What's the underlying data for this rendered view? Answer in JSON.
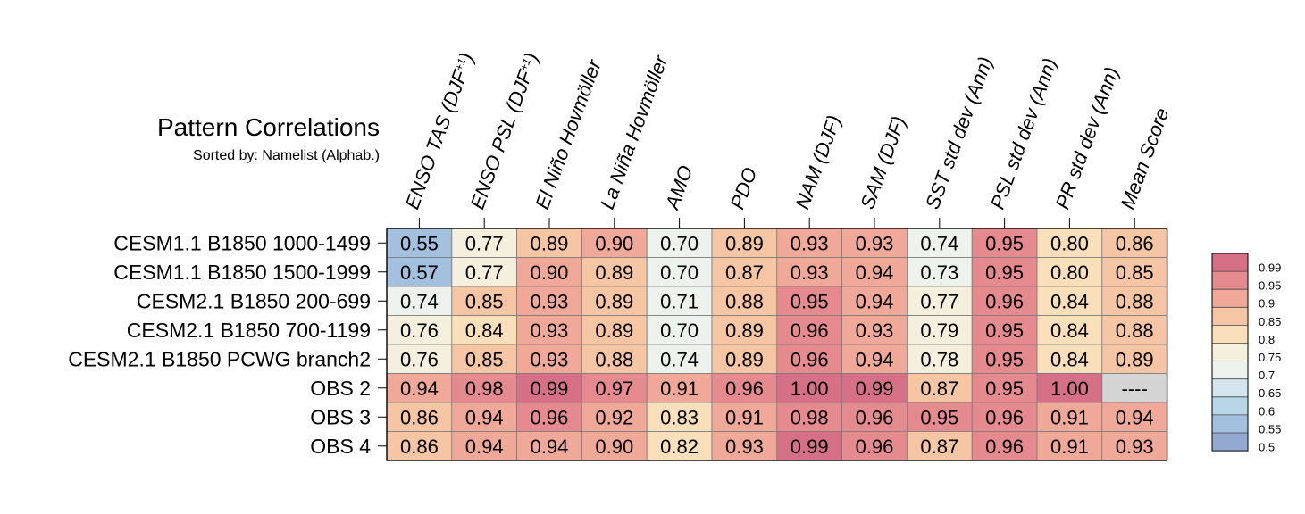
{
  "chart_data": {
    "type": "heatmap",
    "title": "Pattern Correlations",
    "subtitle": "Sorted by: Namelist (Alphab.)",
    "columns": [
      {
        "name": "ENSO TAS (DJF",
        "sup": "+1",
        "tail": ")"
      },
      {
        "name": "ENSO PSL (DJF",
        "sup": "+1",
        "tail": ")"
      },
      {
        "name": "El Niño Hovmöller",
        "sup": "",
        "tail": ""
      },
      {
        "name": "La Niña Hovmöller",
        "sup": "",
        "tail": ""
      },
      {
        "name": "AMO",
        "sup": "",
        "tail": ""
      },
      {
        "name": "PDO",
        "sup": "",
        "tail": ""
      },
      {
        "name": "NAM (DJF)",
        "sup": "",
        "tail": ""
      },
      {
        "name": "SAM (DJF)",
        "sup": "",
        "tail": ""
      },
      {
        "name": "SST std dev (Ann)",
        "sup": "",
        "tail": ""
      },
      {
        "name": "PSL std dev (Ann)",
        "sup": "",
        "tail": ""
      },
      {
        "name": "PR std dev (Ann)",
        "sup": "",
        "tail": ""
      },
      {
        "name": "Mean Score",
        "sup": "",
        "tail": ""
      }
    ],
    "rows": [
      {
        "name": "CESM1.1 B1850 1000-1499",
        "values": [
          "0.55",
          "0.77",
          "0.89",
          "0.90",
          "0.70",
          "0.89",
          "0.93",
          "0.93",
          "0.74",
          "0.95",
          "0.80",
          "0.86"
        ]
      },
      {
        "name": "CESM1.1 B1850 1500-1999",
        "values": [
          "0.57",
          "0.77",
          "0.90",
          "0.89",
          "0.70",
          "0.87",
          "0.93",
          "0.94",
          "0.73",
          "0.95",
          "0.80",
          "0.85"
        ]
      },
      {
        "name": "CESM2.1 B1850 200-699",
        "values": [
          "0.74",
          "0.85",
          "0.93",
          "0.89",
          "0.71",
          "0.88",
          "0.95",
          "0.94",
          "0.77",
          "0.96",
          "0.84",
          "0.88"
        ]
      },
      {
        "name": "CESM2.1 B1850 700-1199",
        "values": [
          "0.76",
          "0.84",
          "0.93",
          "0.89",
          "0.70",
          "0.89",
          "0.96",
          "0.93",
          "0.79",
          "0.95",
          "0.84",
          "0.88"
        ]
      },
      {
        "name": "CESM2.1 B1850 PCWG branch2",
        "values": [
          "0.76",
          "0.85",
          "0.93",
          "0.88",
          "0.74",
          "0.89",
          "0.96",
          "0.94",
          "0.78",
          "0.95",
          "0.84",
          "0.89"
        ]
      },
      {
        "name": "OBS 2",
        "values": [
          "0.94",
          "0.98",
          "0.99",
          "0.97",
          "0.91",
          "0.96",
          "1.00",
          "0.99",
          "0.87",
          "0.95",
          "1.00",
          "----"
        ]
      },
      {
        "name": "OBS 3",
        "values": [
          "0.86",
          "0.94",
          "0.96",
          "0.92",
          "0.83",
          "0.91",
          "0.98",
          "0.96",
          "0.95",
          "0.96",
          "0.91",
          "0.94"
        ]
      },
      {
        "name": "OBS 4",
        "values": [
          "0.86",
          "0.94",
          "0.94",
          "0.90",
          "0.82",
          "0.93",
          "0.99",
          "0.96",
          "0.87",
          "0.96",
          "0.91",
          "0.93"
        ]
      }
    ],
    "missing_color": "#d4d4d4",
    "colorbar": {
      "levels": [
        "0.99",
        "0.95",
        "0.9",
        "0.85",
        "0.8",
        "0.75",
        "0.7",
        "0.65",
        "0.6",
        "0.55",
        "0.5"
      ],
      "thresholds": [
        1.0,
        0.99,
        0.95,
        0.9,
        0.85,
        0.8,
        0.75,
        0.7,
        0.65,
        0.6,
        0.55,
        0.5
      ],
      "colors": [
        "#d67086",
        "#e58a8e",
        "#f0a898",
        "#f5c5a4",
        "#f9e0bb",
        "#f5f0dd",
        "#eef2ec",
        "#d5e5ee",
        "#b9d6e8",
        "#a3c1df",
        "#93a9d2"
      ]
    }
  }
}
